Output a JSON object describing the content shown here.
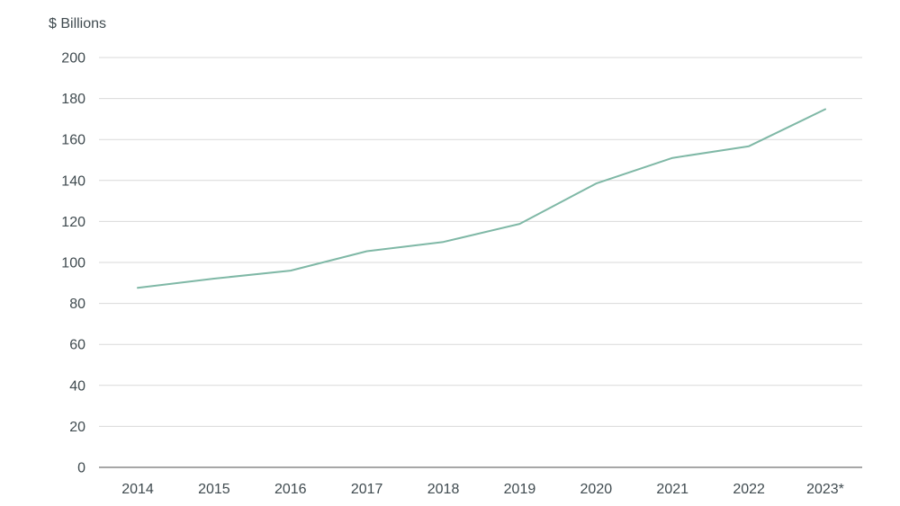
{
  "chart_data": {
    "type": "line",
    "title": "",
    "ylabel": "$ Billions",
    "xlabel": "",
    "categories": [
      "2014",
      "2015",
      "2016",
      "2017",
      "2018",
      "2019",
      "2020",
      "2021",
      "2022",
      "2023*"
    ],
    "series": [
      {
        "values": [
          87.6,
          92.1,
          96.0,
          105.5,
          110.0,
          118.8,
          138.5,
          151.0,
          156.7,
          174.8
        ],
        "color": "#7fb8a6"
      }
    ],
    "ylim": [
      0,
      200
    ],
    "yticks": [
      0,
      20,
      40,
      60,
      80,
      100,
      120,
      140,
      160,
      180,
      200
    ],
    "grid": "horizontal",
    "legend": "none"
  }
}
